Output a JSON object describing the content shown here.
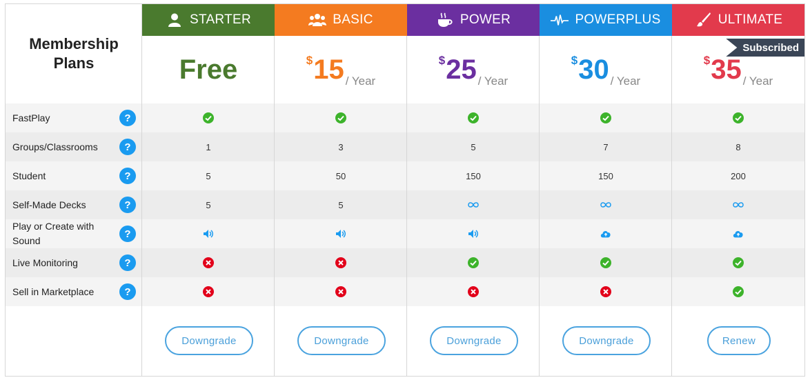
{
  "title_line1": "Membership",
  "title_line2": "Plans",
  "subscribed_label": "Subscribed",
  "plans": [
    {
      "name": "STARTER",
      "color": "#4a7a2e",
      "icon": "user-icon",
      "price": "Free",
      "currency": "",
      "period": "",
      "action": "Downgrade"
    },
    {
      "name": "BASIC",
      "color": "#f47b20",
      "icon": "group-icon",
      "price": "15",
      "currency": "$",
      "period": "/ Year",
      "action": "Downgrade"
    },
    {
      "name": "POWER",
      "color": "#6b2fa0",
      "icon": "coffee-icon",
      "price": "25",
      "currency": "$",
      "period": "/ Year",
      "action": "Downgrade"
    },
    {
      "name": "POWERPLUS",
      "color": "#1a8ee0",
      "icon": "pulse-icon",
      "price": "30",
      "currency": "$",
      "period": "/ Year",
      "action": "Downgrade"
    },
    {
      "name": "ULTIMATE",
      "color": "#e23a4c",
      "icon": "brush-icon",
      "price": "35",
      "currency": "$",
      "period": "/ Year",
      "action": "Renew"
    }
  ],
  "features": [
    {
      "label": "FastPlay",
      "values": [
        "check",
        "check",
        "check",
        "check",
        "check"
      ]
    },
    {
      "label": "Groups/Classrooms",
      "values": [
        "1",
        "3",
        "5",
        "7",
        "8"
      ]
    },
    {
      "label": "Student",
      "values": [
        "5",
        "50",
        "150",
        "150",
        "200"
      ]
    },
    {
      "label": "Self-Made Decks",
      "values": [
        "5",
        "5",
        "infinity",
        "infinity",
        "infinity"
      ]
    },
    {
      "label": "Play or Create with Sound",
      "values": [
        "sound",
        "sound",
        "sound",
        "upload",
        "upload"
      ]
    },
    {
      "label": "Live Monitoring",
      "values": [
        "cross",
        "cross",
        "check",
        "check",
        "check"
      ]
    },
    {
      "label": "Sell in Marketplace",
      "values": [
        "cross",
        "cross",
        "cross",
        "cross",
        "check"
      ]
    }
  ],
  "help_symbol": "?",
  "colors": {
    "check": "#3db32b",
    "cross": "#e2001a",
    "info": "#1a9bf0",
    "button": "#4aa3df"
  }
}
